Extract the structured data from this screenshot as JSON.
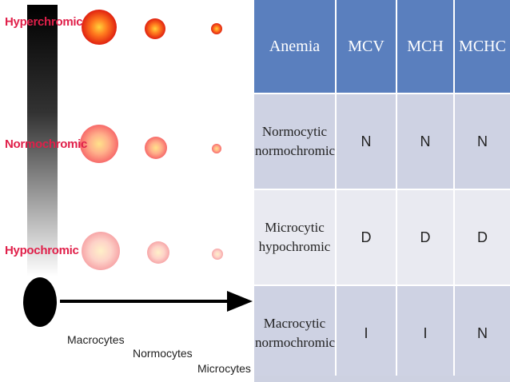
{
  "left_panel": {
    "row_labels": [
      "Hyperchromic",
      "Normochromic",
      "Hypochromic"
    ],
    "size_labels": [
      "Macrocytes",
      "Normocytes",
      "Microcytes"
    ]
  },
  "table": {
    "headers": [
      "Anemia",
      "MCV",
      "MCH",
      "MCHC"
    ],
    "rows": [
      {
        "name_line1": "Normocytic",
        "name_line2": "normochromic",
        "mcv": "N",
        "mch": "N",
        "mchc": "N"
      },
      {
        "name_line1": "Microcytic",
        "name_line2": "hypochromic",
        "mcv": "D",
        "mch": "D",
        "mchc": "D"
      },
      {
        "name_line1": "Macrocytic",
        "name_line2": "normochromic",
        "mcv": "I",
        "mch": "I",
        "mchc": "N"
      }
    ]
  },
  "colors": {
    "header_blue": "#5a7fbe",
    "row_label_red": "#e0204a"
  }
}
